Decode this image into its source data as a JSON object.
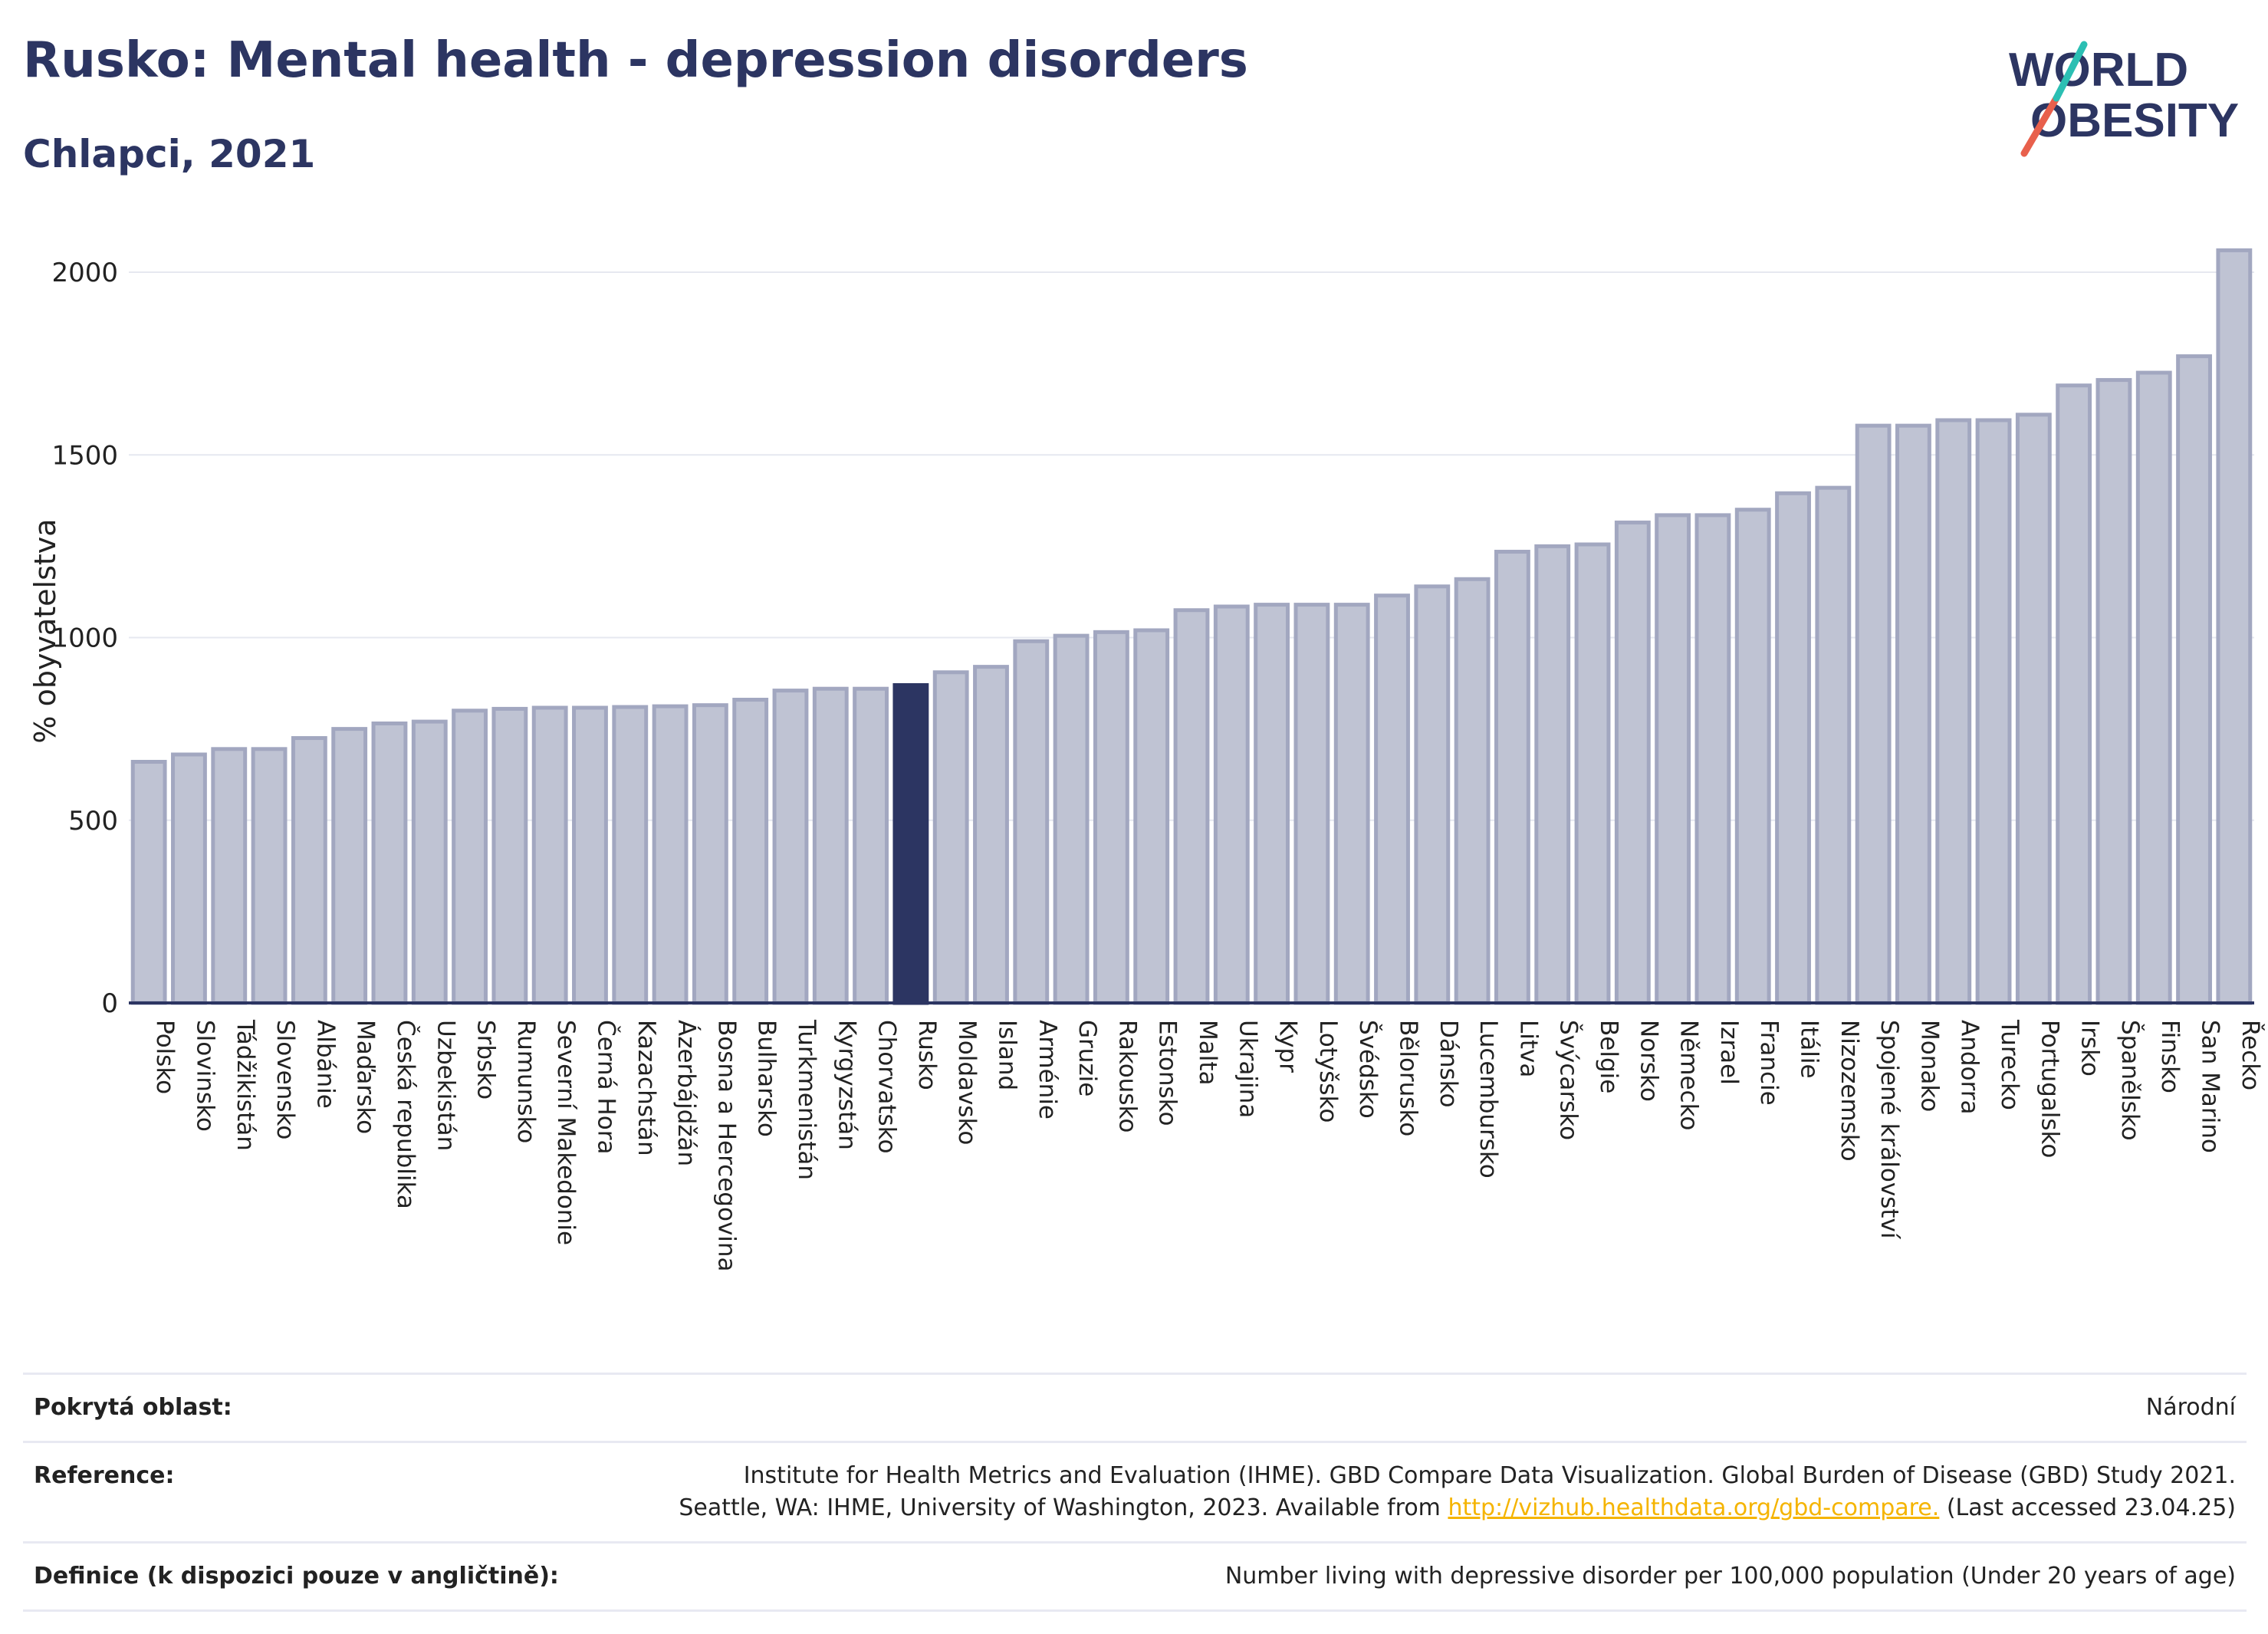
{
  "header": {
    "title": "Rusko: Mental health - depression disorders",
    "subtitle": "Chlapci, 2021"
  },
  "logo": {
    "line1": "WORLD",
    "line2": "OBESITY"
  },
  "colors": {
    "bar": "#bfc3d3",
    "bar_stroke": "#a2a7c0",
    "highlight": "#2c3562",
    "grid": "#e6e8f0",
    "title": "#2c3562",
    "link": "#f5b400"
  },
  "chart_data": {
    "type": "bar",
    "ylabel": "% obyvatelstva",
    "ylim": [
      0,
      2100
    ],
    "yticks": [
      0,
      500,
      1000,
      1500,
      2000
    ],
    "grid": true,
    "highlight": "Rusko",
    "categories": [
      "Polsko",
      "Slovinsko",
      "Tádžikistán",
      "Slovensko",
      "Albánie",
      "Maďarsko",
      "Česká republika",
      "Uzbekistán",
      "Srbsko",
      "Rumunsko",
      "Severní Makedonie",
      "Černá Hora",
      "Kazachstán",
      "Ázerbájdžán",
      "Bosna a Hercegovina",
      "Bulharsko",
      "Turkmenistán",
      "Kyrgyzstán",
      "Chorvatsko",
      "Rusko",
      "Moldavsko",
      "Island",
      "Arménie",
      "Gruzie",
      "Rakousko",
      "Estonsko",
      "Malta",
      "Ukrajina",
      "Kypr",
      "Lotyšsko",
      "Švédsko",
      "Bělorusko",
      "Dánsko",
      "Lucembursko",
      "Litva",
      "Švýcarsko",
      "Belgie",
      "Norsko",
      "Německo",
      "Izrael",
      "Francie",
      "Itálie",
      "Nizozemsko",
      "Spojené království",
      "Monako",
      "Andorra",
      "Turecko",
      "Portugalsko",
      "Irsko",
      "Španělsko",
      "Finsko",
      "San Marino",
      "Řecko"
    ],
    "values": [
      660,
      680,
      695,
      695,
      725,
      750,
      765,
      770,
      800,
      805,
      808,
      808,
      810,
      812,
      815,
      830,
      855,
      860,
      860,
      870,
      905,
      920,
      990,
      1005,
      1015,
      1020,
      1075,
      1085,
      1090,
      1090,
      1090,
      1115,
      1140,
      1160,
      1235,
      1250,
      1255,
      1315,
      1335,
      1335,
      1350,
      1395,
      1410,
      1580,
      1580,
      1595,
      1595,
      1610,
      1690,
      1705,
      1725,
      1770,
      2060
    ]
  },
  "info": {
    "coverage_label": "Pokrytá oblast:",
    "coverage_value": "Národní",
    "reference_label": "Reference:",
    "reference_line1": "Institute for Health Metrics and Evaluation (IHME). GBD Compare Data Visualization. Global Burden of Disease (GBD) Study 2021.",
    "reference_line2_pre": "Seattle, WA: IHME, University of Washington, 2023. Available from ",
    "reference_link": "http://vizhub.healthdata.org/gbd-compare.",
    "reference_line2_post": " (Last accessed 23.04.25)",
    "definition_label": "Definice (k dispozici pouze v angličtině):",
    "definition_value": "Number living with depressive disorder per 100,000 population (Under 20 years of age)"
  }
}
